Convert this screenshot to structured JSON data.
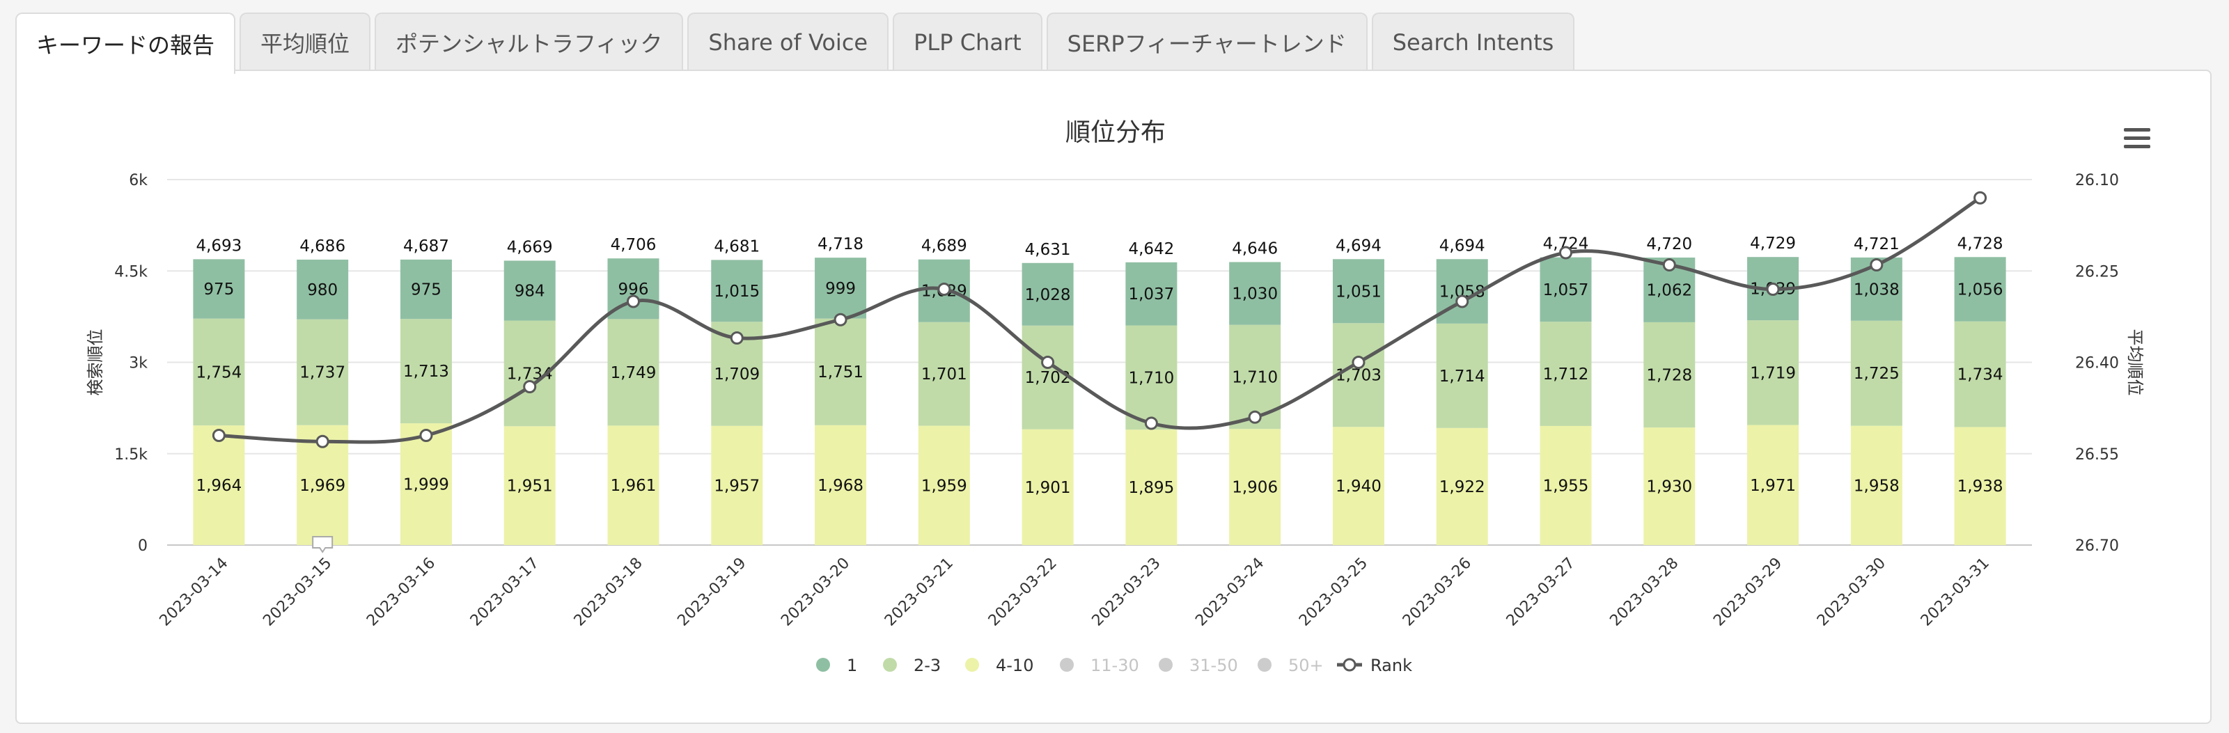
{
  "tabs": [
    {
      "label": "キーワードの報告",
      "active": true
    },
    {
      "label": "平均順位",
      "active": false
    },
    {
      "label": "ポテンシャルトラフィック",
      "active": false
    },
    {
      "label": "Share of Voice",
      "active": false
    },
    {
      "label": "PLP Chart",
      "active": false
    },
    {
      "label": "SERPフィーチャートレンド",
      "active": false
    },
    {
      "label": "Search Intents",
      "active": false
    }
  ],
  "menu_icon": "hamburger-menu-icon",
  "chart_data": {
    "type": "bar",
    "stacked": true,
    "title": "順位分布",
    "ylabel": "検索順位",
    "y2label": "平均順位",
    "ylim": [
      0,
      6000
    ],
    "yticks": [
      "0",
      "1.5k",
      "3k",
      "4.5k",
      "6k"
    ],
    "y2ticks": [
      "26.10",
      "26.25",
      "26.40",
      "26.55",
      "26.70"
    ],
    "y2lim": [
      26.1,
      26.7
    ],
    "y2_reversed": true,
    "grid": true,
    "legend_position": "bottom",
    "categories": [
      "2023-03-14",
      "2023-03-15",
      "2023-03-16",
      "2023-03-17",
      "2023-03-18",
      "2023-03-19",
      "2023-03-20",
      "2023-03-21",
      "2023-03-22",
      "2023-03-23",
      "2023-03-24",
      "2023-03-25",
      "2023-03-26",
      "2023-03-27",
      "2023-03-28",
      "2023-03-29",
      "2023-03-30",
      "2023-03-31"
    ],
    "totals": [
      4693,
      4686,
      4687,
      4669,
      4706,
      4681,
      4718,
      4689,
      4631,
      4642,
      4646,
      4694,
      4694,
      4724,
      4720,
      4729,
      4721,
      4728
    ],
    "series": [
      {
        "name": "4-10",
        "color": "#ecf2a8",
        "values": [
          1964,
          1969,
          1999,
          1951,
          1961,
          1957,
          1968,
          1959,
          1901,
          1895,
          1906,
          1940,
          1922,
          1955,
          1930,
          1971,
          1958,
          1938
        ]
      },
      {
        "name": "2-3",
        "color": "#c0dba8",
        "values": [
          1754,
          1737,
          1713,
          1734,
          1749,
          1709,
          1751,
          1701,
          1702,
          1710,
          1710,
          1703,
          1714,
          1712,
          1728,
          1719,
          1725,
          1734
        ]
      },
      {
        "name": "1",
        "color": "#8fbfa3",
        "values": [
          975,
          980,
          975,
          984,
          996,
          1015,
          999,
          1029,
          1028,
          1037,
          1030,
          1051,
          1058,
          1057,
          1062,
          1039,
          1038,
          1056
        ]
      }
    ],
    "rank_series": {
      "name": "Rank",
      "color": "#595959",
      "values": [
        26.52,
        26.53,
        26.52,
        26.44,
        26.3,
        26.36,
        26.33,
        26.28,
        26.4,
        26.5,
        26.49,
        26.4,
        26.3,
        26.22,
        26.24,
        26.28,
        26.24,
        26.13
      ]
    },
    "legend": [
      {
        "name": "1",
        "color": "#8fbfa3",
        "enabled": true,
        "type": "dot"
      },
      {
        "name": "2-3",
        "color": "#c0dba8",
        "enabled": true,
        "type": "dot"
      },
      {
        "name": "4-10",
        "color": "#ecf2a8",
        "enabled": true,
        "type": "dot"
      },
      {
        "name": "11-30",
        "color": "#cccccc",
        "enabled": false,
        "type": "dot"
      },
      {
        "name": "31-50",
        "color": "#cccccc",
        "enabled": false,
        "type": "dot"
      },
      {
        "name": "50+",
        "color": "#cccccc",
        "enabled": false,
        "type": "dot"
      },
      {
        "name": "Rank",
        "color": "#595959",
        "enabled": true,
        "type": "line"
      }
    ]
  }
}
